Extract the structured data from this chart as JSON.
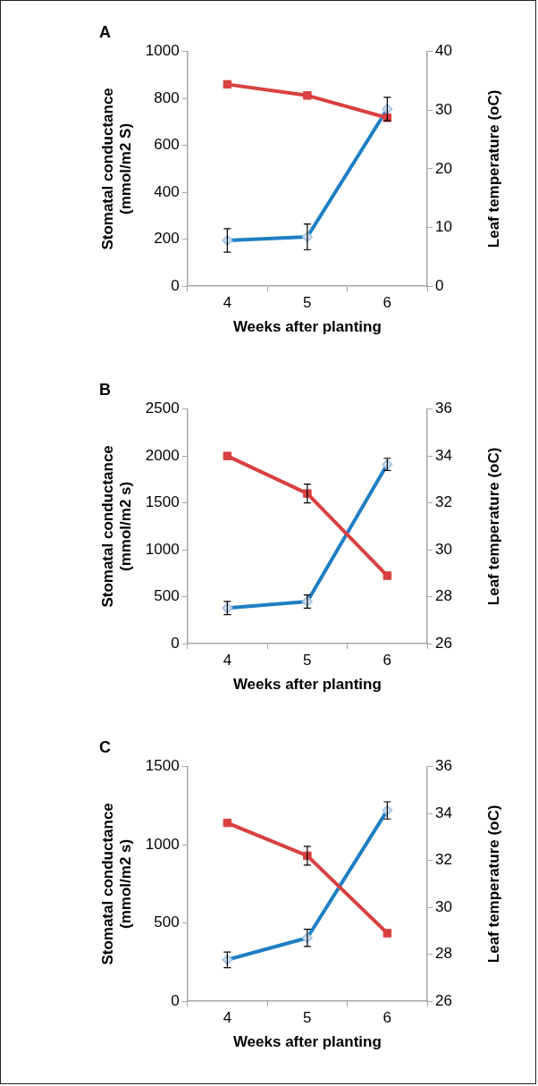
{
  "chart_data": [
    {
      "type": "line",
      "title": "A",
      "xlabel": "Weeks after planting",
      "ylabel": "Stomatal conductance\n(mmol/m2 S)",
      "y2label": "Leaf temperature (oC)",
      "categories": [
        "4",
        "5",
        "6"
      ],
      "ylim": [
        0,
        1000
      ],
      "yticks": [
        0,
        200,
        400,
        600,
        800,
        1000
      ],
      "y2lim": [
        0,
        40
      ],
      "y2ticks": [
        0,
        10,
        20,
        30,
        40
      ],
      "grid": false,
      "legend": false,
      "series": [
        {
          "color": "#1f7fc4",
          "marker": "diamond",
          "values": [
            195,
            210,
            755
          ],
          "errors": [
            50,
            55,
            50
          ]
        },
        {
          "color": "#d9403f",
          "marker": "square",
          "axis": "y2",
          "values": [
            34.4,
            32.5,
            28.7
          ]
        }
      ]
    },
    {
      "type": "line",
      "title": "B",
      "xlabel": "Weeks after planting",
      "ylabel": "Stomatal conductance\n(mmol/m2 s)",
      "y2label": "Leaf temperature (oC)",
      "categories": [
        "4",
        "5",
        "6"
      ],
      "ylim": [
        0,
        2500
      ],
      "yticks": [
        0,
        500,
        1000,
        1500,
        2000,
        2500
      ],
      "y2lim": [
        26,
        36
      ],
      "y2ticks": [
        26,
        28,
        30,
        32,
        34,
        36
      ],
      "grid": false,
      "legend": false,
      "series": [
        {
          "color": "#1f7fc4",
          "marker": "diamond",
          "values": [
            380,
            450,
            1910
          ],
          "errors": [
            70,
            70,
            65
          ]
        },
        {
          "color": "#d9403f",
          "marker": "square",
          "axis": "y2",
          "values": [
            34.0,
            32.4,
            28.9
          ],
          "errors": [
            null,
            0.4,
            null
          ]
        }
      ]
    },
    {
      "type": "line",
      "title": "C",
      "xlabel": "Weeks after planting",
      "ylabel": "Stomatal conductance\n(mmol/m2 s)",
      "y2label": "Leaf temperature (oC)",
      "categories": [
        "4",
        "5",
        "6"
      ],
      "ylim": [
        0,
        1500
      ],
      "yticks": [
        0,
        500,
        1000,
        1500
      ],
      "y2lim": [
        26,
        36
      ],
      "y2ticks": [
        26,
        28,
        30,
        32,
        34,
        36
      ],
      "grid": false,
      "legend": false,
      "series": [
        {
          "color": "#1f7fc4",
          "marker": "diamond",
          "values": [
            265,
            405,
            1220
          ],
          "errors": [
            50,
            55,
            55
          ]
        },
        {
          "color": "#d9403f",
          "marker": "square",
          "axis": "y2",
          "values": [
            33.6,
            32.2,
            28.9
          ],
          "errors": [
            null,
            0.4,
            null
          ]
        }
      ]
    }
  ]
}
